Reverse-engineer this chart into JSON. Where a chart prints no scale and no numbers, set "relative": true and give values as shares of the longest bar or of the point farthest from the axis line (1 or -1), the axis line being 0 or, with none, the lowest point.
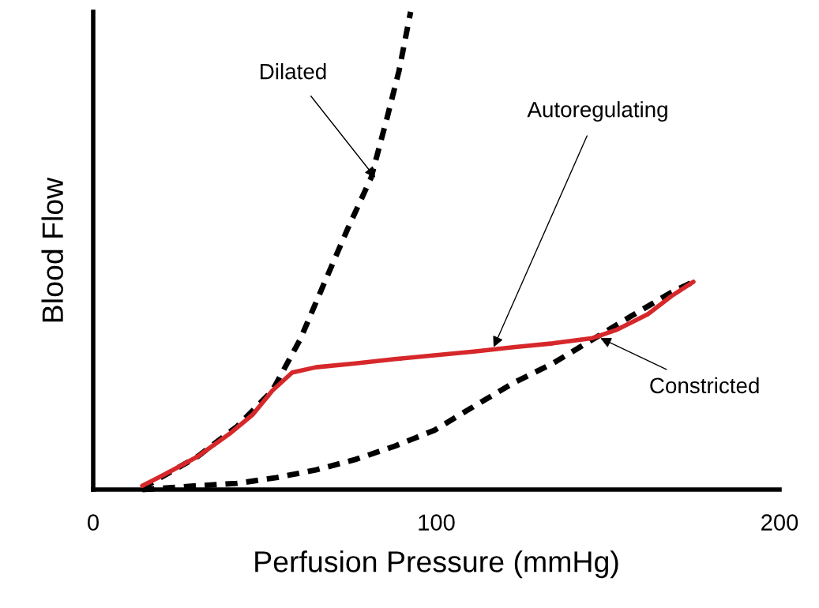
{
  "chart_data": {
    "type": "line",
    "xlabel": "Perfusion Pressure (mmHg)",
    "ylabel": "Blood Flow",
    "relative": true,
    "xlim": [
      0,
      200
    ],
    "xticks": [
      0,
      100,
      200
    ],
    "grid": false,
    "legend": false,
    "marker": "none",
    "series": [
      {
        "color": "#000000",
        "line_style": "dashed",
        "x": [
          14.3,
          30.4,
          41.9,
          52.2,
          60.3,
          67.2,
          74.1,
          81.0,
          85.6,
          89.1,
          92.5
        ],
        "values": [
          0.003,
          0.069,
          0.132,
          0.207,
          0.314,
          0.43,
          0.545,
          0.653,
          0.777,
          0.876,
          1.0
        ]
      },
      {
        "color": "#000000",
        "line_style": "dashed",
        "x": [
          14.3,
          30.4,
          41.9,
          53.4,
          64.9,
          76.4,
          87.9,
          99.4,
          110.9,
          122.4,
          133.9,
          145.5,
          157.0,
          168.5,
          174.9
        ],
        "values": [
          0,
          0.008,
          0.013,
          0.025,
          0.041,
          0.063,
          0.091,
          0.124,
          0.174,
          0.223,
          0.264,
          0.314,
          0.364,
          0.413,
          0.435
        ]
      },
      {
        "color": "#d6282b",
        "line_style": "solid",
        "x": [
          14.3,
          21.2,
          30.4,
          39.6,
          46.5,
          52.2,
          58.0,
          64.9,
          76.4,
          87.9,
          99.4,
          110.9,
          122.4,
          133.9,
          145.5,
          152.4,
          161.6,
          168.5,
          174.9
        ],
        "values": [
          0.008,
          0.033,
          0.069,
          0.116,
          0.157,
          0.207,
          0.245,
          0.256,
          0.264,
          0.273,
          0.281,
          0.289,
          0.298,
          0.306,
          0.317,
          0.334,
          0.367,
          0.405,
          0.435
        ]
      }
    ],
    "annotations": [
      {
        "text": "Dilated",
        "x": 82.2,
        "y": 0.653
      },
      {
        "text": "Autoregulating",
        "x": 116.7,
        "y": 0.298
      },
      {
        "text": "Constricted",
        "x": 147.8,
        "y": 0.317
      }
    ]
  }
}
